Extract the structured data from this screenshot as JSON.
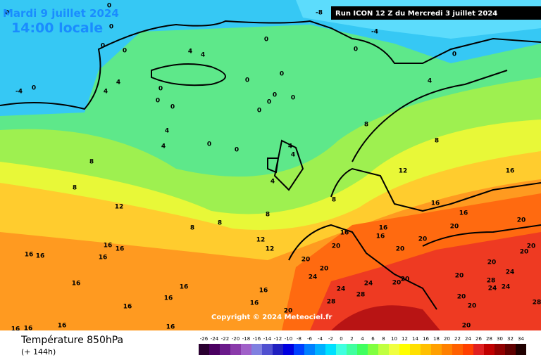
{
  "header": {
    "date": "Mardi 9 juillet 2024",
    "time": "14:00 locale",
    "run": "Run ICON 12 Z du Mercredi 3 juillet 2024",
    "copyright": "Copyright © 2024 Meteociel.fr"
  },
  "footer": {
    "title": "Température 850hPa",
    "range": "(+ 144h)"
  },
  "scale": [
    "-26",
    "-24",
    "-22",
    "-20",
    "-18",
    "-16",
    "-14",
    "-12",
    "-10",
    "-8",
    "-6",
    "-4",
    "-2",
    "0",
    "2",
    "4",
    "6",
    "8",
    "10",
    "12",
    "14",
    "16",
    "18",
    "20",
    "22",
    "24",
    "26",
    "28",
    "30",
    "32",
    "34"
  ],
  "map_labels": [
    "0",
    "-8",
    "0",
    "0",
    "-4",
    "0",
    "0",
    "0",
    "4",
    "4",
    "0",
    "0",
    "-4",
    "0",
    "4",
    "4",
    "0",
    "0",
    "0",
    "0",
    "0",
    "0",
    "0",
    "0",
    "0",
    "4",
    "4",
    "4",
    "0",
    "0",
    "8",
    "8",
    "4",
    "4",
    "8",
    "12",
    "16",
    "8",
    "4",
    "8",
    "12",
    "16",
    "16",
    "8",
    "8",
    "8",
    "16",
    "16",
    "20",
    "20",
    "12",
    "12",
    "16",
    "20",
    "20",
    "20",
    "16",
    "16",
    "16",
    "16",
    "16",
    "20",
    "20",
    "20",
    "20",
    "24",
    "24",
    "20",
    "16",
    "16",
    "24",
    "24",
    "20",
    "20",
    "20",
    "28",
    "24",
    "24",
    "16",
    "16",
    "16",
    "28",
    "28",
    "20",
    "16",
    "20",
    "20",
    "28",
    "16",
    "16",
    "20",
    "16",
    "16"
  ]
}
